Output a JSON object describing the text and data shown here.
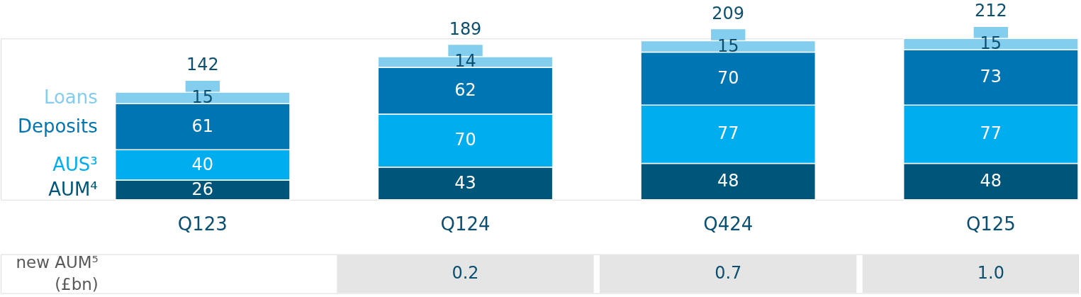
{
  "chart_data": [
    {
      "type": "bar",
      "stacked": true,
      "categories": [
        "Q123",
        "Q124",
        "Q424",
        "Q125"
      ],
      "series": [
        {
          "name": "AUM⁴",
          "color": "#00567a",
          "values": [
            26,
            43,
            48,
            48
          ]
        },
        {
          "name": "AUS³",
          "color": "#00aeef",
          "values": [
            40,
            70,
            77,
            77
          ]
        },
        {
          "name": "Deposits",
          "color": "#0075b4",
          "values": [
            61,
            62,
            70,
            73
          ]
        },
        {
          "name": "Loans",
          "color": "#83cdee",
          "values": [
            15,
            14,
            15,
            15
          ]
        }
      ],
      "data_labels": true,
      "totals": [
        "142",
        "189",
        "209",
        "212"
      ]
    },
    {
      "type": "other",
      "ylabel": "new AUM⁵\n(£bn)",
      "color": "#e5e5e5",
      "values": [
        null,
        0.2,
        0.7,
        1.0
      ],
      "value_labels": [
        null,
        "0.2",
        "0.7",
        "1.0"
      ]
    }
  ]
}
